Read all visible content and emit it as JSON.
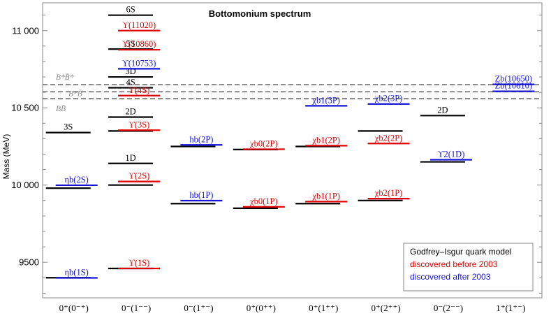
{
  "chart_data": {
    "type": "level-diagram",
    "title": "Bottomonium spectrum",
    "ylabel": "Mass (MeV)",
    "ylim": [
      9270,
      11180
    ],
    "yticks": [
      9500,
      10000,
      10500,
      11000
    ],
    "ytick_labels": [
      "9500",
      "10 000",
      "10 500",
      "11 000"
    ],
    "categories": [
      "0⁺(0⁻⁺)",
      "0⁻(1⁻⁻)",
      "0⁻(1⁺⁻)",
      "0⁺(0⁺⁺)",
      "0⁺(1⁺⁺)",
      "0⁺(2⁺⁺)",
      "0⁻(2⁻⁻)",
      "1⁺(1⁺⁻)"
    ],
    "colors": {
      "model": "#000000",
      "before2003": "#e00000",
      "after2003": "#1515d8",
      "threshold": "#777777"
    },
    "legend": {
      "position": "bottom-right",
      "entries": [
        {
          "label": "Godfrey–Isgur quark model",
          "color": "#000000"
        },
        {
          "label": "discovered before 2003",
          "color": "#e00000"
        },
        {
          "label": "discovered after 2003",
          "color": "#1515d8"
        }
      ]
    },
    "thresholds": [
      {
        "label": "B*B̄*",
        "mass": 10650
      },
      {
        "label": "B*B̄",
        "mass": 10604
      },
      {
        "label": "BB̄",
        "mass": 10559
      }
    ],
    "levels": [
      {
        "col": 0,
        "set": "model",
        "mass": 9400
      },
      {
        "col": 0,
        "set": "model",
        "mass": 9980
      },
      {
        "col": 0,
        "set": "model",
        "mass": 10340,
        "label": "3S"
      },
      {
        "col": 0,
        "set": "after2003",
        "mass": 9399,
        "label": "ηb(1S)"
      },
      {
        "col": 0,
        "set": "after2003",
        "mass": 9999,
        "label": "ηb(2S)"
      },
      {
        "col": 1,
        "set": "model",
        "mass": 9460
      },
      {
        "col": 1,
        "set": "model",
        "mass": 10000
      },
      {
        "col": 1,
        "set": "model",
        "mass": 10140,
        "label": "1D"
      },
      {
        "col": 1,
        "set": "model",
        "mass": 10350
      },
      {
        "col": 1,
        "set": "model",
        "mass": 10440,
        "label": "2D"
      },
      {
        "col": 1,
        "set": "model",
        "mass": 10630,
        "label": "4S"
      },
      {
        "col": 1,
        "set": "model",
        "mass": 10700,
        "label": "3D"
      },
      {
        "col": 1,
        "set": "model",
        "mass": 10880,
        "label": "5S"
      },
      {
        "col": 1,
        "set": "model",
        "mass": 11100,
        "label": "6S"
      },
      {
        "col": 1,
        "set": "before2003",
        "mass": 9460,
        "label": "ϒ(1S)"
      },
      {
        "col": 1,
        "set": "before2003",
        "mass": 10023,
        "label": "ϒ(2S)"
      },
      {
        "col": 1,
        "set": "before2003",
        "mass": 10355,
        "label": "ϒ(3S)"
      },
      {
        "col": 1,
        "set": "before2003",
        "mass": 10579,
        "label": "ϒ(4S)"
      },
      {
        "col": 1,
        "set": "before2003",
        "mass": 10876,
        "label": "ϒ(10860)"
      },
      {
        "col": 1,
        "set": "before2003",
        "mass": 11000,
        "label": "ϒ(11020)"
      },
      {
        "col": 1,
        "set": "after2003",
        "mass": 10753,
        "label": "ϒ(10753)"
      },
      {
        "col": 2,
        "set": "model",
        "mass": 9880
      },
      {
        "col": 2,
        "set": "model",
        "mass": 10250
      },
      {
        "col": 2,
        "set": "after2003",
        "mass": 9899,
        "label": "hb(1P)"
      },
      {
        "col": 2,
        "set": "after2003",
        "mass": 10260,
        "label": "hb(2P)"
      },
      {
        "col": 3,
        "set": "model",
        "mass": 9850
      },
      {
        "col": 3,
        "set": "model",
        "mass": 10230
      },
      {
        "col": 3,
        "set": "before2003",
        "mass": 9859,
        "label": "χb0(1P)"
      },
      {
        "col": 3,
        "set": "before2003",
        "mass": 10232,
        "label": "χb0(2P)"
      },
      {
        "col": 4,
        "set": "model",
        "mass": 9880
      },
      {
        "col": 4,
        "set": "model",
        "mass": 10250
      },
      {
        "col": 4,
        "set": "before2003",
        "mass": 9893,
        "label": "χb1(1P)"
      },
      {
        "col": 4,
        "set": "before2003",
        "mass": 10255,
        "label": "χb1(2P)"
      },
      {
        "col": 4,
        "set": "after2003",
        "mass": 10513,
        "label": "χb1(3P)"
      },
      {
        "col": 5,
        "set": "model",
        "mass": 9900
      },
      {
        "col": 5,
        "set": "model",
        "mass": 10350
      },
      {
        "col": 5,
        "set": "before2003",
        "mass": 9912,
        "label": "χb2(1P)"
      },
      {
        "col": 5,
        "set": "before2003",
        "mass": 10269,
        "label": "χb2(2P)"
      },
      {
        "col": 5,
        "set": "after2003",
        "mass": 10525,
        "label": "χb2(3P)"
      },
      {
        "col": 6,
        "set": "model",
        "mass": 10150
      },
      {
        "col": 6,
        "set": "model",
        "mass": 10450,
        "label": "2D"
      },
      {
        "col": 6,
        "set": "after2003",
        "mass": 10164,
        "label": "ϒ2(1D)"
      },
      {
        "col": 7,
        "set": "after2003",
        "mass": 10607,
        "label": "Zb(10610)"
      },
      {
        "col": 7,
        "set": "after2003",
        "mass": 10652,
        "label": "Zb(10650)"
      }
    ]
  }
}
